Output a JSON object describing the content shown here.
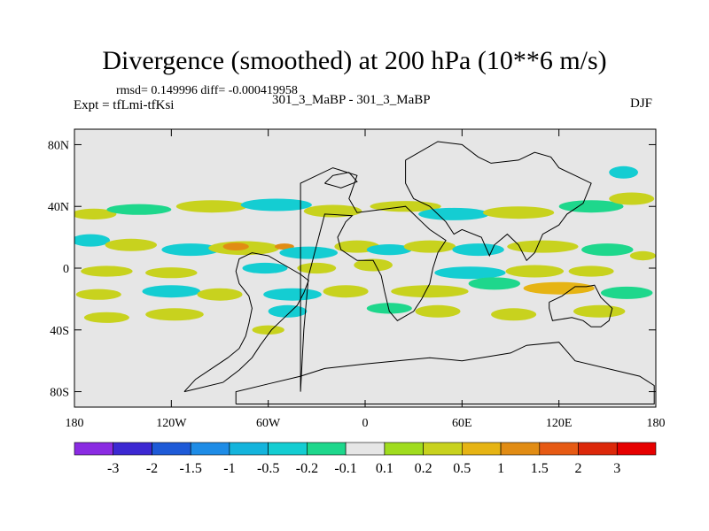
{
  "header": {
    "title": "Divergence (smoothed) at 200 hPa (10**6 m/s)",
    "stats": "rmsd= 0.149996 diff= -0.000419958",
    "experiment": "Expt = tfLmi-tfKsi",
    "comparison": "301_3_MaBP - 301_3_MaBP",
    "season": "DJF"
  },
  "chart_data": {
    "type": "heatmap",
    "title": "Divergence (smoothed) at 200 hPa (10**6 m/s)",
    "units": "10**6 m/s",
    "xlabel": "",
    "ylabel": "",
    "xlim": [
      -180,
      180
    ],
    "ylim": [
      -90,
      90
    ],
    "x_ticks": [
      {
        "value": -180,
        "label": "180"
      },
      {
        "value": -120,
        "label": "120W"
      },
      {
        "value": -60,
        "label": "60W"
      },
      {
        "value": 0,
        "label": "0"
      },
      {
        "value": 60,
        "label": "60E"
      },
      {
        "value": 120,
        "label": "120E"
      },
      {
        "value": 180,
        "label": "180"
      }
    ],
    "y_ticks": [
      {
        "value": 80,
        "label": "80N"
      },
      {
        "value": 40,
        "label": "40N"
      },
      {
        "value": 0,
        "label": "0"
      },
      {
        "value": -40,
        "label": "40S"
      },
      {
        "value": -80,
        "label": "80S"
      }
    ],
    "colorbar": {
      "labels": [
        "-3",
        "-2",
        "-1.5",
        "-1",
        "-0.5",
        "-0.2",
        "-0.1",
        "0.1",
        "0.2",
        "0.5",
        "1",
        "1.5",
        "2",
        "3"
      ],
      "colors": [
        "#8a2be2",
        "#3c28d2",
        "#1e5ad7",
        "#1e8ce6",
        "#14b4dc",
        "#14cdd2",
        "#1ed78c",
        "#e6e6e6",
        "#a0dc1e",
        "#c8d21e",
        "#e6b414",
        "#e18c14",
        "#e65a14",
        "#dc280a",
        "#e60000"
      ]
    },
    "blobs": [
      {
        "lon": -168,
        "lat": 35,
        "rx": 14,
        "ry": 3.5,
        "value": 0.3
      },
      {
        "lon": -140,
        "lat": 38,
        "rx": 20,
        "ry": 3.5,
        "value": -0.15
      },
      {
        "lon": -95,
        "lat": 40,
        "rx": 22,
        "ry": 4,
        "value": 0.3
      },
      {
        "lon": -55,
        "lat": 41,
        "rx": 22,
        "ry": 4,
        "value": -0.3
      },
      {
        "lon": -20,
        "lat": 37,
        "rx": 18,
        "ry": 4,
        "value": 0.3
      },
      {
        "lon": 25,
        "lat": 40,
        "rx": 22,
        "ry": 3.5,
        "value": 0.3
      },
      {
        "lon": 55,
        "lat": 35,
        "rx": 22,
        "ry": 4,
        "value": -0.3
      },
      {
        "lon": 95,
        "lat": 36,
        "rx": 22,
        "ry": 4,
        "value": 0.3
      },
      {
        "lon": 140,
        "lat": 40,
        "rx": 20,
        "ry": 4,
        "value": -0.15
      },
      {
        "lon": 165,
        "lat": 45,
        "rx": 14,
        "ry": 4,
        "value": 0.3
      },
      {
        "lon": 160,
        "lat": 62,
        "rx": 9,
        "ry": 4,
        "value": -0.3
      },
      {
        "lon": -170,
        "lat": 18,
        "rx": 12,
        "ry": 4,
        "value": -0.3
      },
      {
        "lon": -145,
        "lat": 15,
        "rx": 16,
        "ry": 4,
        "value": 0.3
      },
      {
        "lon": -108,
        "lat": 12,
        "rx": 18,
        "ry": 4,
        "value": -0.3
      },
      {
        "lon": -75,
        "lat": 13,
        "rx": 22,
        "ry": 4.5,
        "value": 0.3
      },
      {
        "lon": -80,
        "lat": 14,
        "rx": 8,
        "ry": 2.5,
        "value": 1
      },
      {
        "lon": -50,
        "lat": 14,
        "rx": 6,
        "ry": 2,
        "value": 1
      },
      {
        "lon": -35,
        "lat": 10,
        "rx": 18,
        "ry": 4,
        "value": -0.3
      },
      {
        "lon": -5,
        "lat": 14,
        "rx": 14,
        "ry": 4,
        "value": 0.3
      },
      {
        "lon": 15,
        "lat": 12,
        "rx": 14,
        "ry": 3.5,
        "value": -0.3
      },
      {
        "lon": 40,
        "lat": 14,
        "rx": 16,
        "ry": 4,
        "value": 0.3
      },
      {
        "lon": 70,
        "lat": 12,
        "rx": 16,
        "ry": 4,
        "value": -0.3
      },
      {
        "lon": 110,
        "lat": 14,
        "rx": 22,
        "ry": 4,
        "value": 0.3
      },
      {
        "lon": 150,
        "lat": 12,
        "rx": 16,
        "ry": 4,
        "value": -0.15
      },
      {
        "lon": 172,
        "lat": 8,
        "rx": 8,
        "ry": 3,
        "value": 0.3
      },
      {
        "lon": -160,
        "lat": -2,
        "rx": 16,
        "ry": 3.5,
        "value": 0.3
      },
      {
        "lon": -120,
        "lat": -3,
        "rx": 16,
        "ry": 3.5,
        "value": 0.3
      },
      {
        "lon": -62,
        "lat": 0,
        "rx": 14,
        "ry": 3.5,
        "value": -0.3
      },
      {
        "lon": -30,
        "lat": 0,
        "rx": 12,
        "ry": 3.5,
        "value": 0.3
      },
      {
        "lon": 5,
        "lat": 2,
        "rx": 12,
        "ry": 4,
        "value": 0.3
      },
      {
        "lon": 65,
        "lat": -3,
        "rx": 22,
        "ry": 4,
        "value": -0.3
      },
      {
        "lon": 105,
        "lat": -2,
        "rx": 18,
        "ry": 4,
        "value": 0.3
      },
      {
        "lon": 140,
        "lat": -2,
        "rx": 14,
        "ry": 3.5,
        "value": 0.3
      },
      {
        "lon": -165,
        "lat": -17,
        "rx": 14,
        "ry": 3.5,
        "value": 0.3
      },
      {
        "lon": -120,
        "lat": -15,
        "rx": 18,
        "ry": 4,
        "value": -0.3
      },
      {
        "lon": -90,
        "lat": -17,
        "rx": 14,
        "ry": 4,
        "value": 0.3
      },
      {
        "lon": -45,
        "lat": -17,
        "rx": 18,
        "ry": 4,
        "value": -0.3
      },
      {
        "lon": -12,
        "lat": -15,
        "rx": 14,
        "ry": 4,
        "value": 0.3
      },
      {
        "lon": 40,
        "lat": -15,
        "rx": 24,
        "ry": 4,
        "value": 0.3
      },
      {
        "lon": 80,
        "lat": -10,
        "rx": 16,
        "ry": 4,
        "value": -0.15
      },
      {
        "lon": 120,
        "lat": -13,
        "rx": 22,
        "ry": 4,
        "value": 0.5
      },
      {
        "lon": 162,
        "lat": -16,
        "rx": 16,
        "ry": 4,
        "value": -0.15
      },
      {
        "lon": -160,
        "lat": -32,
        "rx": 14,
        "ry": 3.5,
        "value": 0.3
      },
      {
        "lon": -118,
        "lat": -30,
        "rx": 18,
        "ry": 4,
        "value": 0.3
      },
      {
        "lon": -48,
        "lat": -28,
        "rx": 12,
        "ry": 4,
        "value": -0.3
      },
      {
        "lon": 15,
        "lat": -26,
        "rx": 14,
        "ry": 3.5,
        "value": -0.15
      },
      {
        "lon": 45,
        "lat": -28,
        "rx": 14,
        "ry": 4,
        "value": 0.3
      },
      {
        "lon": 92,
        "lat": -30,
        "rx": 14,
        "ry": 4,
        "value": 0.3
      },
      {
        "lon": 145,
        "lat": -28,
        "rx": 16,
        "ry": 4,
        "value": 0.3
      },
      {
        "lon": -60,
        "lat": -40,
        "rx": 10,
        "ry": 3,
        "value": 0.3
      }
    ],
    "coastlines": [
      [
        [
          -112,
          -80
        ],
        [
          -105,
          -72
        ],
        [
          -95,
          -65
        ],
        [
          -85,
          -58
        ],
        [
          -78,
          -52
        ],
        [
          -74,
          -44
        ],
        [
          -72,
          -36
        ],
        [
          -70,
          -26
        ],
        [
          -72,
          -18
        ],
        [
          -78,
          -10
        ],
        [
          -80,
          -2
        ],
        [
          -78,
          6
        ],
        [
          -70,
          10
        ],
        [
          -60,
          8
        ],
        [
          -50,
          2
        ],
        [
          -40,
          -4
        ],
        [
          -35,
          -8
        ],
        [
          -38,
          -16
        ],
        [
          -42,
          -24
        ],
        [
          -50,
          -32
        ],
        [
          -58,
          -40
        ],
        [
          -65,
          -50
        ],
        [
          -70,
          -58
        ],
        [
          -78,
          -66
        ],
        [
          -88,
          -74
        ],
        [
          -112,
          -80
        ]
      ],
      [
        [
          -40,
          -80
        ],
        [
          -40,
          55
        ],
        [
          -20,
          65
        ],
        [
          -5,
          60
        ],
        [
          -10,
          45
        ],
        [
          -5,
          36
        ],
        [
          10,
          38
        ],
        [
          25,
          40
        ],
        [
          30,
          35
        ],
        [
          35,
          30
        ],
        [
          40,
          25
        ],
        [
          50,
          18
        ],
        [
          45,
          10
        ],
        [
          42,
          0
        ],
        [
          40,
          -10
        ],
        [
          35,
          -20
        ],
        [
          30,
          -28
        ],
        [
          20,
          -34
        ],
        [
          15,
          -28
        ],
        [
          12,
          -15
        ],
        [
          10,
          -5
        ],
        [
          5,
          5
        ],
        [
          -5,
          5
        ],
        [
          -15,
          12
        ],
        [
          -17,
          20
        ],
        [
          -12,
          30
        ],
        [
          -8,
          34
        ],
        [
          -25,
          35
        ],
        [
          -30,
          15
        ],
        [
          -35,
          -5
        ],
        [
          -38,
          -40
        ],
        [
          -40,
          -80
        ]
      ],
      [
        [
          25,
          70
        ],
        [
          45,
          82
        ],
        [
          60,
          80
        ],
        [
          70,
          72
        ],
        [
          78,
          68
        ],
        [
          95,
          70
        ],
        [
          105,
          75
        ],
        [
          115,
          72
        ],
        [
          120,
          65
        ],
        [
          130,
          60
        ],
        [
          140,
          55
        ],
        [
          135,
          42
        ],
        [
          125,
          35
        ],
        [
          120,
          28
        ],
        [
          110,
          22
        ],
        [
          105,
          10
        ],
        [
          100,
          5
        ],
        [
          95,
          15
        ],
        [
          88,
          22
        ],
        [
          80,
          15
        ],
        [
          77,
          8
        ],
        [
          72,
          20
        ],
        [
          60,
          25
        ],
        [
          55,
          22
        ],
        [
          50,
          30
        ],
        [
          40,
          40
        ],
        [
          30,
          45
        ],
        [
          25,
          55
        ],
        [
          25,
          70
        ]
      ],
      [
        [
          -80,
          -88
        ],
        [
          179,
          -88
        ],
        [
          179,
          -76
        ],
        [
          170,
          -70
        ],
        [
          130,
          -60
        ],
        [
          120,
          -48
        ],
        [
          100,
          -50
        ],
        [
          90,
          -55
        ],
        [
          60,
          -60
        ],
        [
          40,
          -58
        ],
        [
          20,
          -60
        ],
        [
          0,
          -62
        ],
        [
          -25,
          -65
        ],
        [
          -40,
          -70
        ],
        [
          -60,
          -75
        ],
        [
          -80,
          -80
        ],
        [
          -80,
          -88
        ]
      ],
      [
        [
          114,
          -22
        ],
        [
          122,
          -18
        ],
        [
          130,
          -12
        ],
        [
          137,
          -12
        ],
        [
          142,
          -11
        ],
        [
          146,
          -19
        ],
        [
          153,
          -26
        ],
        [
          151,
          -34
        ],
        [
          146,
          -38
        ],
        [
          140,
          -38
        ],
        [
          135,
          -34
        ],
        [
          128,
          -32
        ],
        [
          116,
          -34
        ],
        [
          114,
          -26
        ],
        [
          114,
          -22
        ]
      ],
      [
        [
          -25,
          55
        ],
        [
          -20,
          60
        ],
        [
          -10,
          62
        ],
        [
          -5,
          56
        ],
        [
          -15,
          52
        ],
        [
          -25,
          55
        ]
      ]
    ]
  }
}
